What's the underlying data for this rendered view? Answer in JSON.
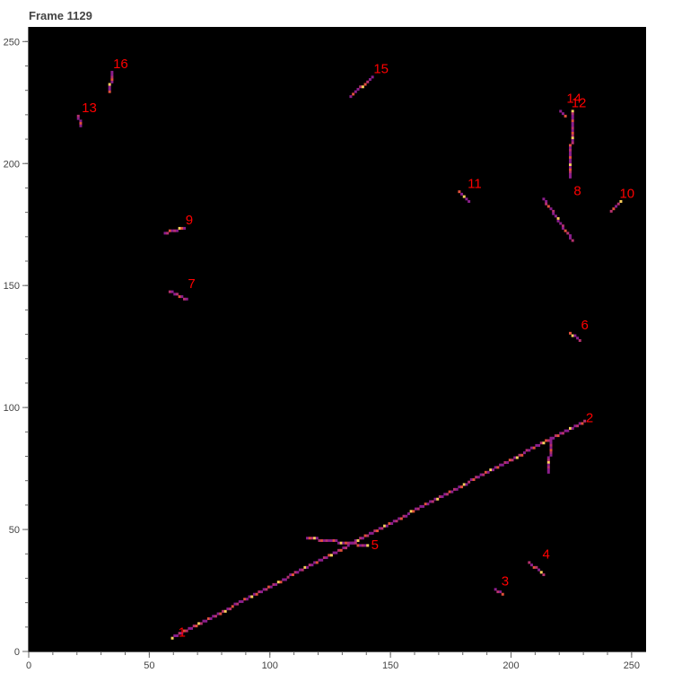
{
  "chart_data": {
    "type": "scatter",
    "title": "Frame 1129",
    "xlabel": "",
    "ylabel": "",
    "xlim": [
      0,
      256
    ],
    "ylim": [
      0,
      256
    ],
    "x_ticks": [
      0,
      50,
      100,
      150,
      200,
      250
    ],
    "y_ticks": [
      0,
      50,
      100,
      150,
      200,
      250
    ],
    "grid": false,
    "legend": "none",
    "background_color": "#000000",
    "hit_colors": [
      "#8b1e8c",
      "#b5306e",
      "#e0503a",
      "#f58a2a",
      "#fcd05a",
      "#fff5c8"
    ],
    "label_color": "#ff0000",
    "tracks": [
      {
        "label": "1",
        "x0": 59,
        "y0": 5,
        "x1": 230,
        "y1": 94,
        "label_x": 62,
        "label_y": 6
      },
      {
        "label": "2",
        "x0": 216,
        "y0": 86,
        "x1": 215,
        "y1": 73,
        "label_x": 231,
        "label_y": 94
      },
      {
        "label": "3",
        "x0": 193,
        "y0": 25,
        "x1": 196,
        "y1": 23,
        "label_x": 196,
        "label_y": 27
      },
      {
        "label": "4",
        "x0": 207,
        "y0": 36,
        "x1": 213,
        "y1": 31,
        "label_x": 213,
        "label_y": 38
      },
      {
        "label": "5",
        "x0": 115,
        "y0": 46,
        "x1": 140,
        "y1": 43,
        "label_x": 142,
        "label_y": 42
      },
      {
        "label": "6",
        "x0": 224,
        "y0": 130,
        "x1": 228,
        "y1": 127,
        "label_x": 229,
        "label_y": 132
      },
      {
        "label": "7",
        "x0": 58,
        "y0": 147,
        "x1": 65,
        "y1": 144,
        "label_x": 66,
        "label_y": 149
      },
      {
        "label": "8",
        "x0": 213,
        "y0": 185,
        "x1": 225,
        "y1": 168,
        "label_x": 226,
        "label_y": 187
      },
      {
        "label": "9",
        "x0": 56,
        "y0": 171,
        "x1": 64,
        "y1": 173,
        "label_x": 65,
        "label_y": 175
      },
      {
        "label": "10",
        "x0": 241,
        "y0": 180,
        "x1": 245,
        "y1": 184,
        "label_x": 245,
        "label_y": 186
      },
      {
        "label": "11",
        "x0": 178,
        "y0": 188,
        "x1": 182,
        "y1": 184,
        "label_x": 182,
        "label_y": 190
      },
      {
        "label": "12",
        "x0": 225,
        "y0": 221,
        "x1": 224,
        "y1": 194,
        "label_x": 225,
        "label_y": 223
      },
      {
        "label": "13",
        "x0": 20,
        "y0": 219,
        "x1": 21,
        "y1": 215,
        "label_x": 22,
        "label_y": 221
      },
      {
        "label": "14",
        "x0": 220,
        "y0": 221,
        "x1": 222,
        "y1": 219,
        "label_x": 223,
        "label_y": 225
      },
      {
        "label": "15",
        "x0": 133,
        "y0": 227,
        "x1": 142,
        "y1": 235,
        "label_x": 143,
        "label_y": 237
      },
      {
        "label": "16",
        "x0": 33,
        "y0": 229,
        "x1": 34,
        "y1": 237,
        "label_x": 35,
        "label_y": 239
      }
    ]
  }
}
